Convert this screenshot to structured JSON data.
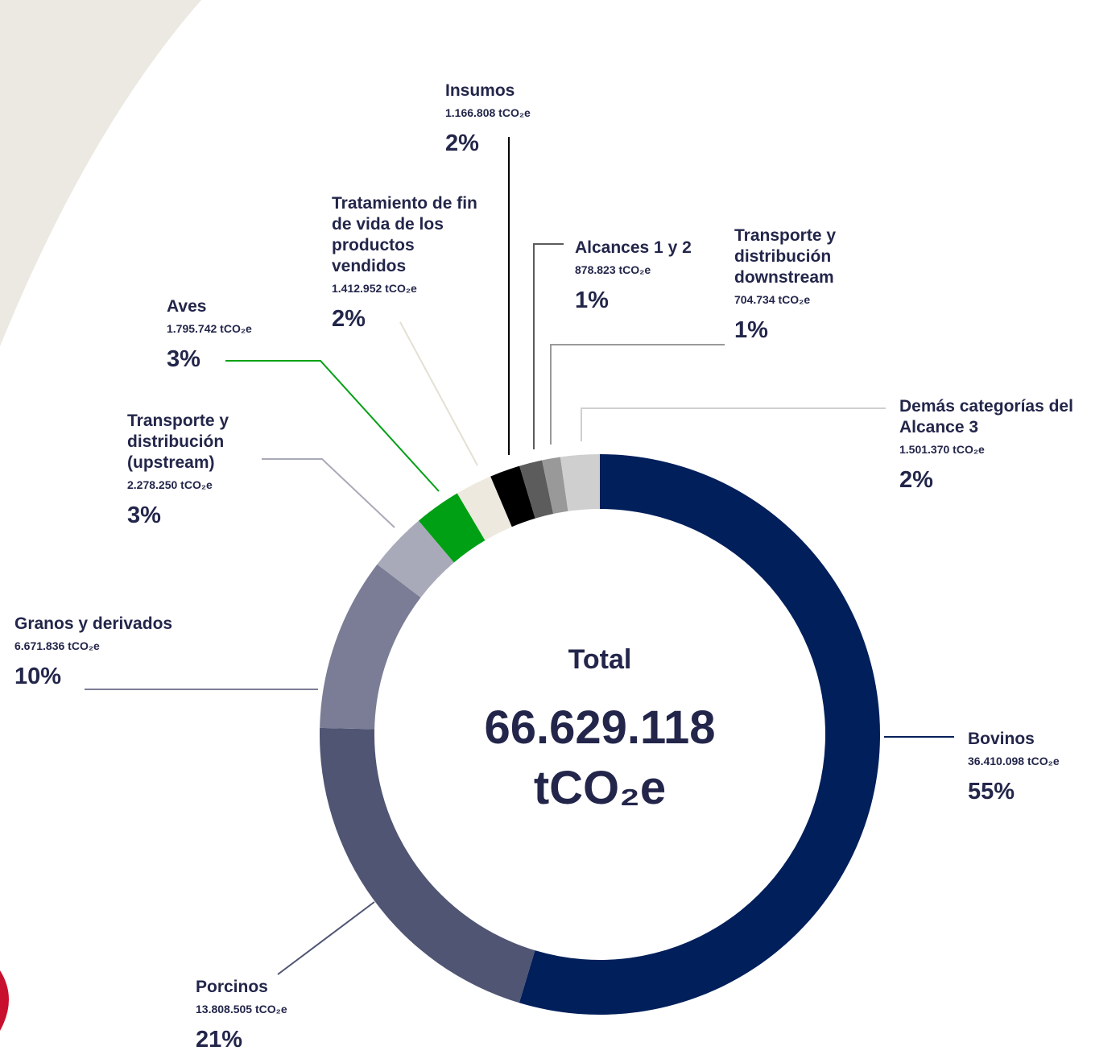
{
  "chart_data": {
    "type": "donut",
    "categories": [
      "Bovinos",
      "Porcinos",
      "Granos y derivados",
      "Transporte y distribución (upstream)",
      "Aves",
      "Tratamiento de fin de vida de los productos vendidos",
      "Insumos",
      "Alcances 1 y 2",
      "Transporte y distribución downstream",
      "Demás categorías del Alcance 3"
    ],
    "values": [
      36410098,
      13808505,
      6671836,
      2278250,
      1795742,
      1412952,
      1166808,
      878823,
      704734,
      1501370
    ],
    "value_labels": [
      "36.410.098 tCO₂e",
      "13.808.505 tCO₂e",
      "6.671.836 tCO₂e",
      "2.278.250 tCO₂e",
      "1.795.742 tCO₂e",
      "1.412.952 tCO₂e",
      "1.166.808 tCO₂e",
      "878.823 tCO₂e",
      "704.734 tCO₂e",
      "1.501.370 tCO₂e"
    ],
    "percentages": [
      55,
      21,
      10,
      3,
      3,
      2,
      2,
      1,
      1,
      2
    ],
    "percentage_labels": [
      "55%",
      "21%",
      "10%",
      "3%",
      "3%",
      "2%",
      "2%",
      "1%",
      "1%",
      "2%"
    ],
    "colors": [
      "#001f5b",
      "#4f5573",
      "#7b7d96",
      "#a9aab9",
      "#00a014",
      "#ede9df",
      "#000000",
      "#5c5c5c",
      "#999999",
      "#cfcfcf"
    ],
    "center_title": "Total",
    "total": {
      "value": 66629118,
      "label": "66.629.118"
    },
    "total_unit": "tCO₂e"
  }
}
